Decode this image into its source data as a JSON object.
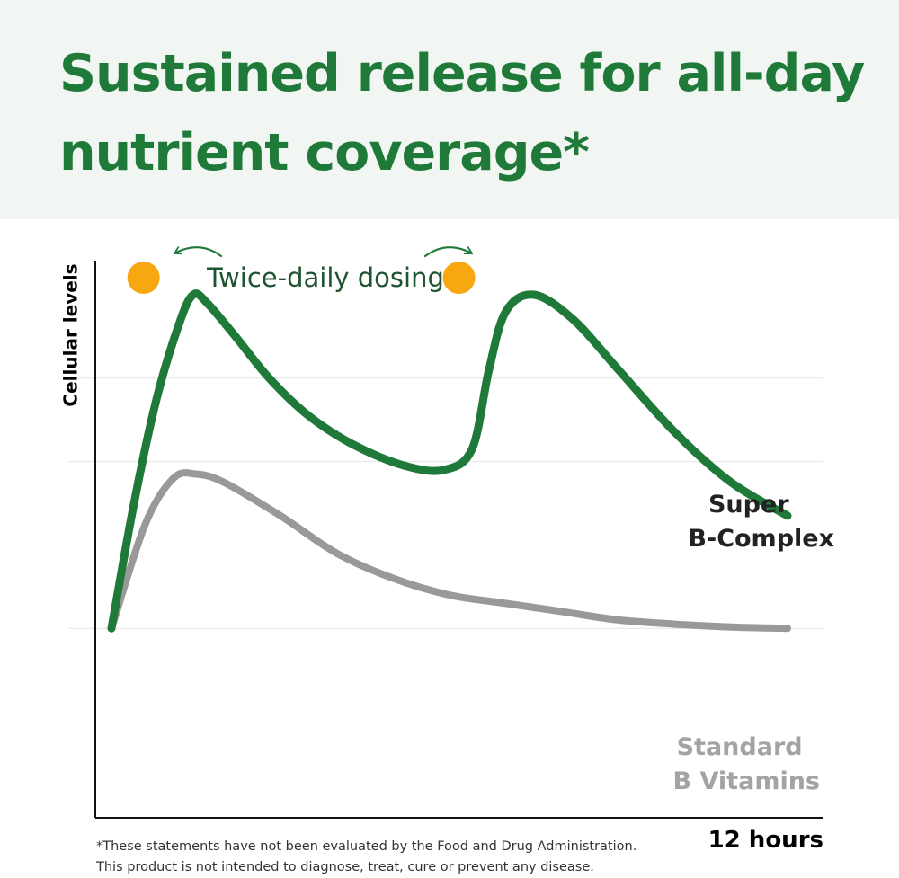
{
  "headline": {
    "line1": "Sustained release for all-day",
    "line2": "nutrient coverage*"
  },
  "colors": {
    "accent": "#1f7a3a",
    "header_bg": "#f1f6f2",
    "standard": "#999999",
    "dose_dot": "#f7a70f",
    "grid": "#e4e4e4"
  },
  "chart_data": {
    "type": "line",
    "title": "",
    "xlabel": "12 hours",
    "ylabel": "Cellular levels",
    "xlim": [
      0,
      12
    ],
    "ylim": [
      0,
      100
    ],
    "grid": "horizontal",
    "gridlines_y": [
      20,
      40,
      60,
      80
    ],
    "annotation": "Twice-daily dosing",
    "dose_markers_x": [
      1.0,
      6.6
    ],
    "series": [
      {
        "name": "Super B-Complex",
        "label_lines": [
          "Super",
          "B-Complex"
        ],
        "color": "#1f7a3a",
        "x": [
          0,
          0.4,
          0.8,
          1.2,
          1.45,
          1.7,
          2.2,
          2.8,
          3.5,
          4.3,
          5.2,
          5.9,
          6.4,
          6.7,
          7.0,
          7.5,
          8.2,
          9.0,
          10.0,
          11.0,
          12.0
        ],
        "y": [
          20,
          50,
          75,
          93,
          100,
          98,
          90,
          80,
          71,
          64,
          59,
          58,
          63,
          82,
          96,
          100,
          94,
          82,
          67,
          55,
          47
        ]
      },
      {
        "name": "Standard B Vitamins",
        "label_lines": [
          "Standard",
          "B Vitamins"
        ],
        "color": "#999999",
        "x": [
          0,
          0.6,
          1.1,
          1.5,
          2.0,
          3.0,
          4.0,
          5.0,
          6.0,
          7.0,
          8.0,
          9.0,
          10.0,
          11.0,
          12.0
        ],
        "y": [
          20,
          45,
          56,
          57,
          55,
          47,
          38,
          32,
          28,
          26,
          24,
          22,
          21,
          20.3,
          20
        ]
      }
    ]
  },
  "footnote": {
    "line1": "*These statements have not been evaluated by the Food and Drug Administration.",
    "line2": "This product is not intended to diagnose, treat, cure or prevent any disease."
  }
}
